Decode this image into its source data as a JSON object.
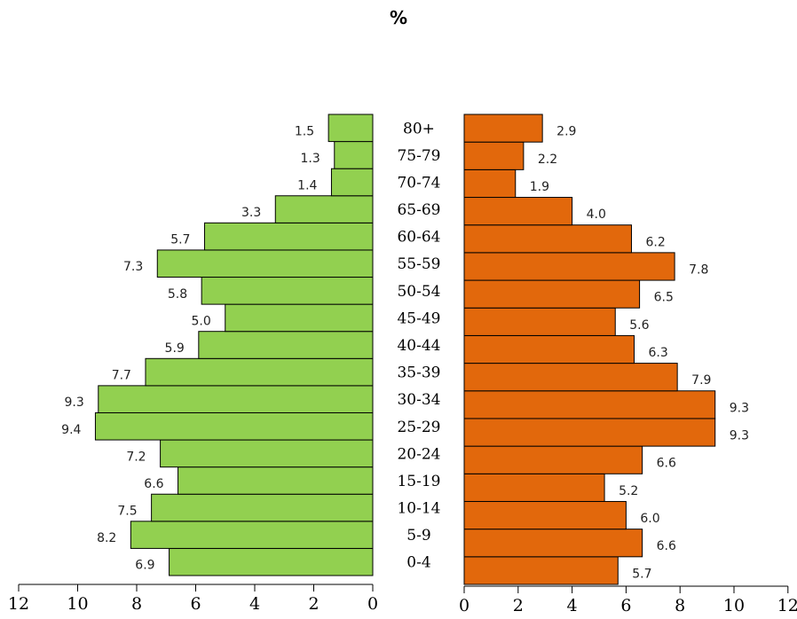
{
  "chart_data": {
    "type": "bar",
    "orientation": "horizontal-pyramid",
    "title": "%",
    "categories": [
      "0-4",
      "5-9",
      "10-14",
      "15-19",
      "20-24",
      "25-29",
      "30-34",
      "35-39",
      "40-44",
      "45-49",
      "50-54",
      "55-59",
      "60-64",
      "65-69",
      "70-74",
      "75-79",
      "80+"
    ],
    "series": [
      {
        "side": "left",
        "color": "#92d050",
        "values": [
          6.9,
          8.2,
          7.5,
          6.6,
          7.2,
          9.4,
          9.3,
          7.7,
          5.9,
          5.0,
          5.8,
          7.3,
          5.7,
          3.3,
          1.4,
          1.3,
          1.5
        ],
        "labels": [
          "6.9",
          "8.2",
          "7.5",
          "6.6",
          "7.2",
          "9.4",
          "9.3",
          "7.7",
          "5.9",
          "5.0",
          "5.8",
          "7.3",
          "5.7",
          "3.3",
          "1.4",
          "1.3",
          "1.5"
        ]
      },
      {
        "side": "right",
        "color": "#e2680c",
        "values": [
          5.7,
          6.6,
          6.0,
          5.2,
          6.6,
          9.3,
          9.3,
          7.9,
          6.3,
          5.6,
          6.5,
          7.8,
          6.2,
          4.0,
          1.9,
          2.2,
          2.9
        ],
        "labels": [
          "5.7",
          "6.6",
          "6.0",
          "5.2",
          "6.6",
          "9.3",
          "9.3",
          "7.9",
          "6.3",
          "5.6",
          "6.5",
          "7.8",
          "6.2",
          "4.0",
          "1.9",
          "2.2",
          "2.9"
        ]
      }
    ],
    "left_axis": {
      "range": [
        12,
        0
      ],
      "ticks": [
        "12",
        "10",
        "8",
        "6",
        "4",
        "2",
        "0"
      ]
    },
    "right_axis": {
      "range": [
        0,
        12
      ],
      "ticks": [
        "0",
        "2",
        "4",
        "6",
        "8",
        "10",
        "12"
      ]
    },
    "grid": false,
    "legend": "none"
  }
}
